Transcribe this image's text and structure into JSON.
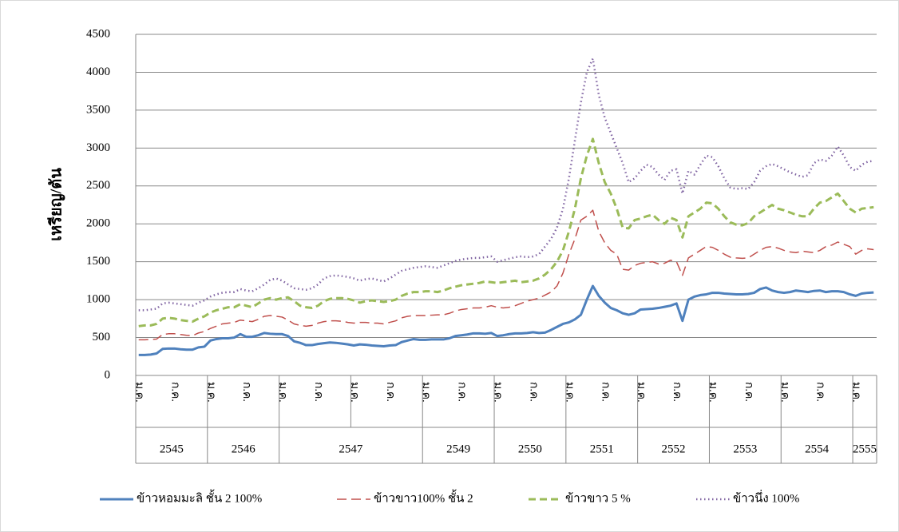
{
  "chart_data": {
    "type": "line",
    "y_label": "เหรียญ/ตัน",
    "ylim": [
      0,
      4500
    ],
    "yticks": [
      0,
      500,
      1000,
      1500,
      2000,
      2500,
      3000,
      3500,
      4000,
      4500
    ],
    "grid": true,
    "legend": "bottom",
    "categories": [
      "ม.ค.",
      null,
      null,
      null,
      null,
      null,
      "ก.ค.",
      null,
      null,
      null,
      null,
      null,
      "ม.ค.",
      null,
      null,
      null,
      null,
      null,
      "ก.ค.",
      null,
      null,
      null,
      null,
      null,
      "ม.ค.",
      null,
      null,
      null,
      null,
      null,
      "ก.ค.",
      null,
      null,
      null,
      null,
      null,
      "ม.ค.",
      null,
      null,
      null,
      null,
      null,
      "ก.ค.",
      null,
      null,
      null,
      null,
      null,
      "ม.ค.",
      null,
      null,
      null,
      null,
      null,
      "ก.ค.",
      null,
      null,
      null,
      null,
      null,
      "ม.ค.",
      null,
      null,
      null,
      null,
      null,
      "ก.ค.",
      null,
      null,
      null,
      null,
      null,
      "ม.ค.",
      null,
      null,
      null,
      null,
      null,
      "ก.ค.",
      null,
      null,
      null,
      null,
      null,
      "ม.ค.",
      null,
      null,
      null,
      null,
      null,
      "ก.ค.",
      null,
      null,
      null,
      null,
      null,
      "ม.ค.",
      null,
      null,
      null,
      null,
      null,
      "ก.ค.",
      null,
      null,
      null,
      null,
      null,
      "ม.ค.",
      null,
      null,
      null,
      null,
      null,
      "ก.ค.",
      null,
      null,
      null,
      null,
      null,
      "ม.ค.",
      null,
      null,
      null
    ],
    "x_groups": [
      {
        "label": "2545",
        "span": 12
      },
      {
        "label": "2546",
        "span": 12
      },
      {
        "label": "2547",
        "span": 24
      },
      {
        "label": "2549",
        "span": 12
      },
      {
        "label": "2550",
        "span": 12
      },
      {
        "label": "2551",
        "span": 12
      },
      {
        "label": "2552",
        "span": 12
      },
      {
        "label": "2553",
        "span": 12
      },
      {
        "label": "2554",
        "span": 12
      },
      {
        "label": "2555",
        "span": 4
      }
    ],
    "series": [
      {
        "name": "ข้าวหอมมะลิ ชั้น 2 100%",
        "color": "#4f81bd",
        "style": "solid",
        "values": [
          270,
          270,
          275,
          290,
          350,
          355,
          355,
          345,
          340,
          340,
          370,
          380,
          460,
          480,
          490,
          490,
          500,
          545,
          510,
          510,
          530,
          560,
          550,
          545,
          545,
          520,
          450,
          430,
          400,
          400,
          415,
          425,
          435,
          430,
          420,
          410,
          395,
          410,
          405,
          395,
          390,
          385,
          395,
          400,
          440,
          460,
          480,
          470,
          470,
          475,
          475,
          475,
          490,
          520,
          530,
          540,
          555,
          555,
          550,
          560,
          520,
          530,
          545,
          555,
          555,
          560,
          570,
          560,
          565,
          600,
          640,
          680,
          700,
          740,
          800,
          1000,
          1180,
          1050,
          960,
          890,
          860,
          820,
          800,
          820,
          870,
          875,
          880,
          890,
          905,
          920,
          950,
          720,
          1000,
          1040,
          1060,
          1070,
          1090,
          1090,
          1080,
          1075,
          1070,
          1070,
          1075,
          1090,
          1140,
          1160,
          1120,
          1100,
          1090,
          1100,
          1120,
          1110,
          1100,
          1115,
          1120,
          1100,
          1110,
          1110,
          1100,
          1070,
          1050,
          1080,
          1090,
          1095
        ]
      },
      {
        "name": "ข้าวขาว100% ชั้น 2",
        "color": "#c0504d",
        "style": "dashed",
        "values": [
          470,
          470,
          475,
          480,
          540,
          550,
          550,
          540,
          530,
          525,
          560,
          580,
          620,
          650,
          680,
          690,
          700,
          730,
          720,
          710,
          740,
          780,
          790,
          780,
          770,
          730,
          680,
          660,
          650,
          660,
          690,
          710,
          720,
          720,
          715,
          700,
          690,
          700,
          700,
          690,
          690,
          680,
          700,
          720,
          760,
          780,
          790,
          790,
          790,
          795,
          800,
          800,
          820,
          850,
          870,
          880,
          890,
          890,
          900,
          920,
          900,
          890,
          900,
          920,
          950,
          980,
          1000,
          1020,
          1060,
          1100,
          1180,
          1350,
          1600,
          1800,
          2050,
          2100,
          2180,
          1900,
          1750,
          1650,
          1600,
          1400,
          1390,
          1450,
          1480,
          1490,
          1500,
          1470,
          1480,
          1520,
          1500,
          1320,
          1550,
          1600,
          1650,
          1700,
          1690,
          1650,
          1600,
          1560,
          1550,
          1545,
          1550,
          1600,
          1650,
          1690,
          1700,
          1680,
          1650,
          1630,
          1620,
          1640,
          1630,
          1620,
          1650,
          1700,
          1720,
          1760,
          1730,
          1700,
          1600,
          1650,
          1670,
          1660
        ]
      },
      {
        "name": "ข้าวขาว 5 %",
        "color": "#9bbb59",
        "style": "long-dashed",
        "values": [
          650,
          660,
          660,
          680,
          750,
          760,
          750,
          730,
          720,
          710,
          750,
          780,
          830,
          860,
          880,
          900,
          900,
          940,
          920,
          900,
          950,
          1000,
          1020,
          1000,
          1020,
          1030,
          980,
          920,
          900,
          890,
          920,
          980,
          1010,
          1020,
          1020,
          1010,
          990,
          960,
          980,
          990,
          980,
          970,
          980,
          1000,
          1050,
          1080,
          1100,
          1100,
          1110,
          1110,
          1100,
          1120,
          1150,
          1170,
          1190,
          1200,
          1210,
          1220,
          1240,
          1230,
          1220,
          1230,
          1240,
          1250,
          1230,
          1240,
          1250,
          1280,
          1330,
          1400,
          1500,
          1650,
          1900,
          2200,
          2600,
          2900,
          3120,
          2800,
          2550,
          2400,
          2200,
          1950,
          1940,
          2050,
          2070,
          2100,
          2120,
          2050,
          2000,
          2080,
          2050,
          1820,
          2100,
          2150,
          2200,
          2280,
          2270,
          2200,
          2100,
          2020,
          1990,
          1980,
          2010,
          2100,
          2150,
          2200,
          2250,
          2200,
          2180,
          2150,
          2120,
          2100,
          2100,
          2200,
          2280,
          2300,
          2350,
          2400,
          2300,
          2200,
          2150,
          2200,
          2210,
          2220
        ]
      },
      {
        "name": "ข้าวนึ่ง 100%",
        "color": "#8064a2",
        "style": "dotted",
        "values": [
          860,
          860,
          870,
          880,
          950,
          960,
          950,
          940,
          930,
          920,
          960,
          990,
          1040,
          1070,
          1090,
          1100,
          1100,
          1140,
          1120,
          1110,
          1150,
          1200,
          1260,
          1280,
          1250,
          1200,
          1150,
          1140,
          1130,
          1150,
          1200,
          1280,
          1310,
          1320,
          1310,
          1300,
          1280,
          1250,
          1270,
          1280,
          1260,
          1240,
          1280,
          1330,
          1380,
          1400,
          1420,
          1430,
          1440,
          1430,
          1420,
          1450,
          1480,
          1510,
          1530,
          1540,
          1550,
          1550,
          1560,
          1570,
          1500,
          1520,
          1540,
          1560,
          1570,
          1560,
          1570,
          1600,
          1700,
          1800,
          1950,
          2200,
          2600,
          3100,
          3600,
          4000,
          4180,
          3700,
          3400,
          3200,
          3000,
          2800,
          2550,
          2600,
          2700,
          2780,
          2750,
          2650,
          2580,
          2700,
          2720,
          2400,
          2700,
          2650,
          2780,
          2900,
          2880,
          2760,
          2600,
          2480,
          2460,
          2470,
          2460,
          2550,
          2700,
          2760,
          2790,
          2760,
          2720,
          2680,
          2650,
          2620,
          2640,
          2800,
          2850,
          2830,
          2900,
          3020,
          2900,
          2750,
          2700,
          2780,
          2820,
          2830
        ]
      }
    ]
  }
}
